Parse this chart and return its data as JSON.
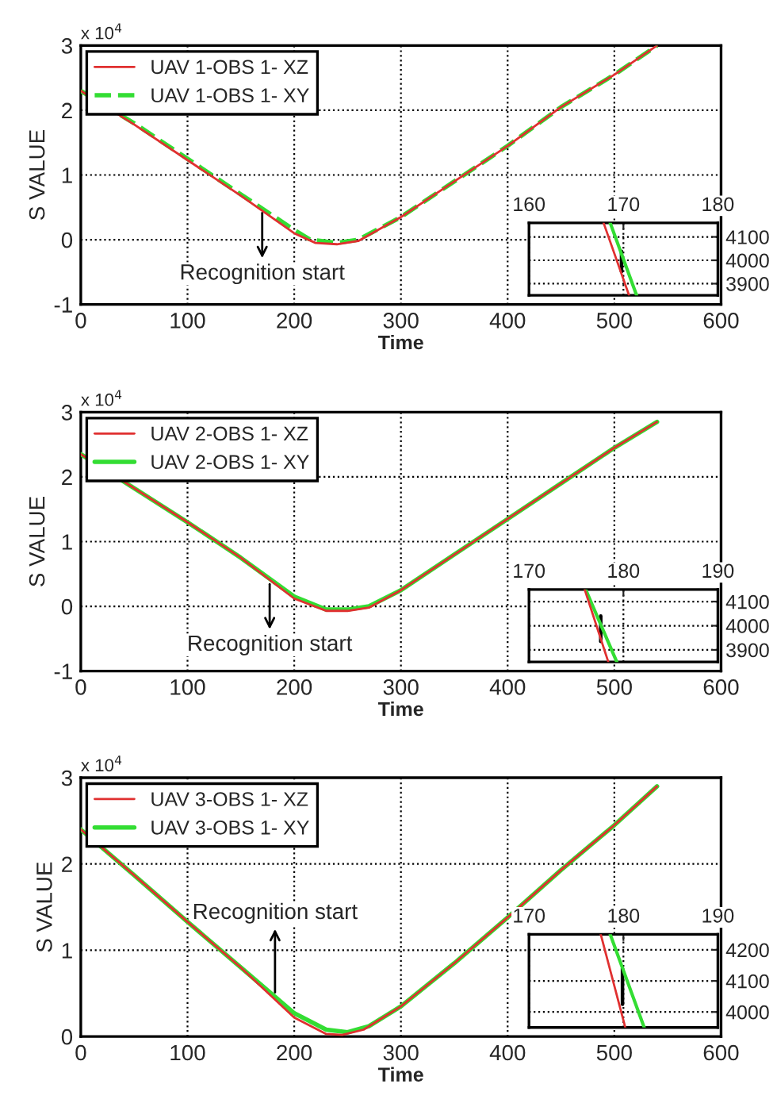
{
  "chart_data": [
    {
      "type": "line",
      "xlabel": "Time",
      "ylabel": "S VALUE",
      "xlim": [
        0,
        600
      ],
      "xticks": [
        0,
        100,
        200,
        300,
        400,
        500,
        600
      ],
      "ylim": [
        -1,
        3
      ],
      "yticks": [
        -1,
        0,
        1,
        2,
        3
      ],
      "grid": true,
      "legend": "top left",
      "annotations": [
        "x 10$^{4}$",
        {
          "text": "Recognition start",
          "x": 170,
          "y": 0.48
        }
      ],
      "series": [
        {
          "name": "UAV 1-OBS 1- XZ",
          "color": "#e03030",
          "line_style": "solid",
          "x": [
            0,
            50,
            100,
            150,
            200,
            220,
            240,
            260,
            300,
            350,
            400,
            450,
            500,
            540
          ],
          "values": [
            2.3,
            1.78,
            1.23,
            0.68,
            0.1,
            -0.05,
            -0.07,
            -0.02,
            0.35,
            0.9,
            1.45,
            2.05,
            2.55,
            3.0
          ]
        },
        {
          "name": "UAV 1-OBS 1- XY",
          "color": "#33dd33",
          "line_style": "dashed",
          "x": [
            0,
            50,
            100,
            150,
            200,
            215,
            240,
            260,
            300,
            350,
            400,
            450,
            500,
            540
          ],
          "values": [
            2.3,
            1.8,
            1.25,
            0.7,
            0.15,
            0.0,
            -0.05,
            0.0,
            0.35,
            0.9,
            1.45,
            2.05,
            2.55,
            3.0
          ]
        }
      ]
    },
    {
      "type": "line",
      "xlim": [
        160,
        180
      ],
      "xticks": [
        160,
        170,
        180
      ],
      "ylim": [
        3850,
        4160
      ],
      "yticks": [
        3900,
        4000,
        4100
      ],
      "grid": true,
      "series": [
        {
          "color": "#e03030",
          "x": [
            167.9,
            170.6
          ],
          "values": [
            4160,
            3850
          ]
        },
        {
          "color": "#33dd33",
          "x": [
            168.6,
            171.4
          ],
          "values": [
            4160,
            3850
          ]
        },
        {
          "color": "#000000",
          "x": [
            169.8,
            169.8
          ],
          "values": [
            4038,
            3952
          ]
        }
      ]
    },
    {
      "type": "line",
      "xlabel": "Time",
      "ylabel": "S VALUE",
      "xlim": [
        0,
        600
      ],
      "xticks": [
        0,
        100,
        200,
        300,
        400,
        500,
        600
      ],
      "ylim": [
        -1,
        3
      ],
      "yticks": [
        -1,
        0,
        1,
        2,
        3
      ],
      "grid": true,
      "legend": "top left",
      "annotations": [
        "x 10$^{4}$",
        {
          "text": "Recognition start",
          "x": 177,
          "y": 0.41
        }
      ],
      "series": [
        {
          "name": "UAV 2-OBS 1- XZ",
          "color": "#e03030",
          "line_style": "solid",
          "x": [
            0,
            100,
            150,
            200,
            230,
            250,
            270,
            300,
            350,
            400,
            450,
            500,
            540
          ],
          "values": [
            2.35,
            1.3,
            0.75,
            0.12,
            -0.07,
            -0.07,
            -0.02,
            0.25,
            0.8,
            1.35,
            1.9,
            2.45,
            2.85
          ]
        },
        {
          "name": "UAV 2-OBS 1- XY",
          "color": "#33dd33",
          "line_style": "solid",
          "x": [
            0,
            100,
            150,
            200,
            230,
            250,
            270,
            300,
            350,
            400,
            450,
            500,
            540
          ],
          "values": [
            2.35,
            1.3,
            0.75,
            0.15,
            -0.05,
            -0.05,
            0.0,
            0.25,
            0.8,
            1.35,
            1.9,
            2.45,
            2.85
          ]
        }
      ]
    },
    {
      "type": "line",
      "xlim": [
        170,
        190
      ],
      "xticks": [
        170,
        180,
        190
      ],
      "ylim": [
        3850,
        4150
      ],
      "yticks": [
        3900,
        4000,
        4100
      ],
      "grid": true,
      "series": [
        {
          "color": "#e03030",
          "x": [
            175.9,
            178.4
          ],
          "values": [
            4150,
            3850
          ]
        },
        {
          "color": "#33dd33",
          "x": [
            176.0,
            179.3
          ],
          "values": [
            4150,
            3850
          ]
        },
        {
          "color": "#000000",
          "x": [
            177.6,
            177.6
          ],
          "values": [
            4040,
            3935
          ]
        }
      ]
    },
    {
      "type": "line",
      "xlabel": "Time",
      "ylabel": "S VALUE",
      "xlim": [
        0,
        600
      ],
      "xticks": [
        0,
        100,
        200,
        300,
        400,
        500,
        600
      ],
      "ylim": [
        0,
        3
      ],
      "yticks": [
        0,
        1,
        2,
        3
      ],
      "grid": true,
      "legend": "top left",
      "annotations": [
        "x 10$^{4}$",
        {
          "text": "Recognition start",
          "x": 182,
          "y": 0.46
        }
      ],
      "series": [
        {
          "name": "UAV 3-OBS 1- XZ",
          "color": "#e03030",
          "line_style": "solid",
          "x": [
            0,
            50,
            100,
            150,
            200,
            230,
            245,
            265,
            300,
            350,
            400,
            450,
            500,
            540
          ],
          "values": [
            2.4,
            1.87,
            1.33,
            0.8,
            0.22,
            0.03,
            0.02,
            0.08,
            0.35,
            0.85,
            1.38,
            1.93,
            2.45,
            2.9
          ]
        },
        {
          "name": "UAV 3-OBS 1- XY",
          "color": "#33dd33",
          "line_style": "solid",
          "x": [
            0,
            50,
            100,
            150,
            200,
            230,
            250,
            270,
            300,
            350,
            400,
            450,
            500,
            540
          ],
          "values": [
            2.4,
            1.87,
            1.33,
            0.8,
            0.27,
            0.08,
            0.05,
            0.12,
            0.35,
            0.85,
            1.38,
            1.93,
            2.45,
            2.9
          ]
        }
      ]
    },
    {
      "type": "line",
      "xlim": [
        170,
        190
      ],
      "xticks": [
        170,
        180,
        190
      ],
      "ylim": [
        3950,
        4250
      ],
      "yticks": [
        4000,
        4100,
        4200
      ],
      "grid": true,
      "series": [
        {
          "color": "#e03030",
          "x": [
            177.6,
            180.2
          ],
          "values": [
            4250,
            3950
          ]
        },
        {
          "color": "#33dd33",
          "x": [
            178.6,
            182.2
          ],
          "values": [
            4250,
            3950
          ]
        },
        {
          "color": "#000000",
          "x": [
            179.9,
            179.9
          ],
          "values": [
            4140,
            4025
          ]
        }
      ]
    }
  ]
}
